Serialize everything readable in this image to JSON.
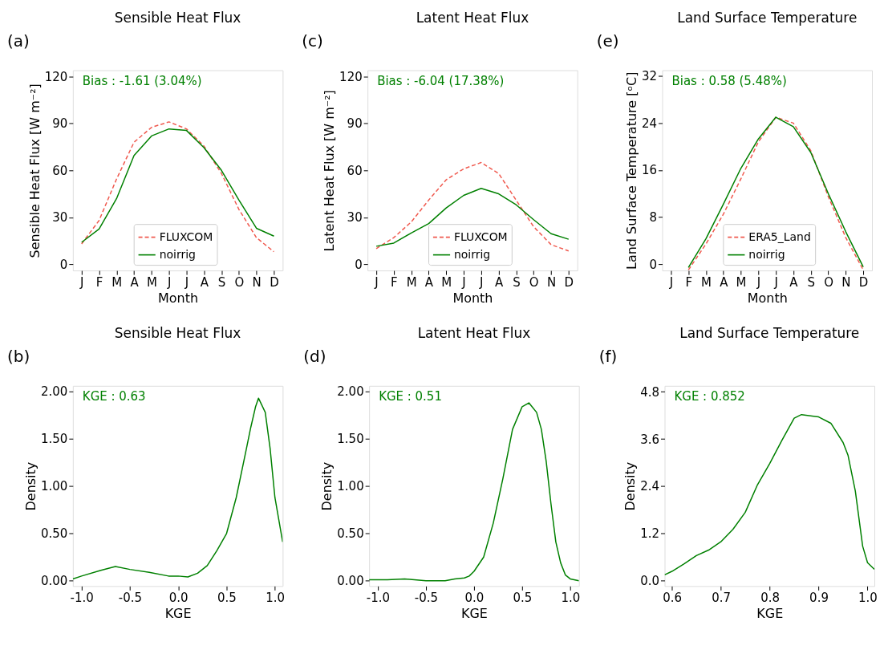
{
  "chart_data": [
    {
      "type": "line",
      "title": "Sensible Heat Flux",
      "xlabel": "Month",
      "ylabel": "Sensible Heat Flux [W m⁻²]",
      "annotations": [
        "(a)",
        "Bias : -1.61 (3.04%)"
      ],
      "categories": [
        "J",
        "F",
        "M",
        "A",
        "M",
        "J",
        "J",
        "A",
        "S",
        "O",
        "N",
        "D"
      ],
      "ylim": [
        -4,
        124
      ],
      "yticks": [
        0,
        30,
        60,
        90,
        120
      ],
      "grid": false,
      "legend": "bottom",
      "series": [
        {
          "name": "FLUXCOM",
          "color": "#f05a4f",
          "line_style": "dashed",
          "values": [
            13,
            28,
            54.5,
            78,
            87.5,
            91,
            86.5,
            75.5,
            58,
            35,
            17,
            8
          ]
        },
        {
          "name": "noirrig",
          "color": "#008000",
          "line_style": "solid",
          "values": [
            14,
            22.5,
            42,
            69.5,
            82,
            86.5,
            85.5,
            74.5,
            60,
            41,
            23,
            18
          ]
        }
      ]
    },
    {
      "type": "line",
      "title": "Latent Heat Flux",
      "xlabel": "Month",
      "ylabel": "Latent Heat Flux [W m⁻²]",
      "annotations": [
        "(c)",
        "Bias : -6.04 (17.38%)"
      ],
      "categories": [
        "J",
        "F",
        "M",
        "A",
        "M",
        "J",
        "J",
        "A",
        "S",
        "O",
        "N",
        "D"
      ],
      "ylim": [
        -4,
        124
      ],
      "yticks": [
        0,
        30,
        60,
        90,
        120
      ],
      "grid": false,
      "legend": "bottom",
      "series": [
        {
          "name": "FLUXCOM",
          "color": "#f05a4f",
          "line_style": "dashed",
          "values": [
            10,
            17,
            27,
            41,
            54,
            61,
            65,
            58,
            41,
            24,
            12.5,
            8.5
          ]
        },
        {
          "name": "noirrig",
          "color": "#008000",
          "line_style": "solid",
          "values": [
            11.5,
            13.5,
            20,
            26,
            36,
            44,
            48.5,
            45,
            38,
            28.5,
            19.5,
            16
          ]
        }
      ]
    },
    {
      "type": "line",
      "title": "Land Surface Temperature",
      "xlabel": "Month",
      "ylabel": "Land Surface Temperature [ᵒC]",
      "annotations": [
        "(e)",
        "Bias : 0.58 (5.48%)"
      ],
      "categories": [
        "J",
        "F",
        "M",
        "A",
        "M",
        "J",
        "J",
        "A",
        "S",
        "O",
        "N",
        "D"
      ],
      "ylim": [
        -1.1,
        33
      ],
      "yticks": [
        0,
        8,
        16,
        24,
        32
      ],
      "grid": false,
      "legend": "bottom",
      "series": [
        {
          "name": "ERA5_Land",
          "color": "#f05a4f",
          "line_style": "dashed",
          "values": [
            null,
            -1.0,
            3.4,
            8.5,
            14.5,
            20.8,
            25,
            24,
            19.3,
            11.5,
            4.5,
            -1.0
          ]
        },
        {
          "name": "noirrig",
          "color": "#008000",
          "line_style": "solid",
          "values": [
            null,
            -0.6,
            4.3,
            10.2,
            16.3,
            21.3,
            25,
            23.4,
            19,
            12,
            5.5,
            -0.5
          ]
        }
      ]
    },
    {
      "type": "line",
      "title": "Sensible Heat Flux",
      "xlabel": "KGE",
      "ylabel": "Density",
      "annotations": [
        "(b)",
        "KGE : 0.63"
      ],
      "xlim": [
        -1.09,
        1.08
      ],
      "xticks": [
        {
          "value": -1,
          "label": "-1.0"
        },
        -0.5,
        {
          "value": 0,
          "label": "0.0"
        },
        0.5,
        {
          "value": 1,
          "label": "1.0"
        }
      ],
      "ylim": [
        -0.056,
        2.06
      ],
      "yticks": [
        {
          "value": 0,
          "label": "0.00"
        },
        {
          "value": 0.5,
          "label": "0.50"
        },
        {
          "value": 1,
          "label": "1.00"
        },
        {
          "value": 1.5,
          "label": "1.50"
        },
        {
          "value": 2,
          "label": "2.00"
        }
      ],
      "grid": false,
      "series": [
        {
          "color": "#008000",
          "x": [
            -1.09,
            -1.0,
            -0.8,
            -0.65,
            -0.5,
            -0.3,
            -0.1,
            0.0,
            0.1,
            0.2,
            0.3,
            0.4,
            0.5,
            0.6,
            0.7,
            0.75,
            0.8,
            0.83,
            0.9,
            0.95,
            1.0,
            1.08
          ],
          "values": [
            0.02,
            0.05,
            0.11,
            0.15,
            0.12,
            0.09,
            0.05,
            0.05,
            0.04,
            0.08,
            0.16,
            0.32,
            0.5,
            0.88,
            1.37,
            1.62,
            1.84,
            1.93,
            1.78,
            1.4,
            0.88,
            0.41
          ]
        }
      ]
    },
    {
      "type": "line",
      "title": "Latent Heat Flux",
      "xlabel": "KGE",
      "ylabel": "Density",
      "annotations": [
        "(d)",
        "KGE : 0.51"
      ],
      "xlim": [
        -1.09,
        1.09
      ],
      "xticks": [
        {
          "value": -1,
          "label": "-1.0"
        },
        -0.5,
        {
          "value": 0,
          "label": "0.0"
        },
        0.5,
        {
          "value": 1,
          "label": "1.0"
        }
      ],
      "ylim": [
        -0.056,
        2.06
      ],
      "yticks": [
        {
          "value": 0,
          "label": "0.00"
        },
        {
          "value": 0.5,
          "label": "0.50"
        },
        {
          "value": 1,
          "label": "1.00"
        },
        {
          "value": 1.5,
          "label": "1.50"
        },
        {
          "value": 2,
          "label": "2.00"
        }
      ],
      "grid": false,
      "series": [
        {
          "color": "#008000",
          "x": [
            -1.09,
            -0.9,
            -0.72,
            -0.5,
            -0.3,
            -0.2,
            -0.1,
            -0.05,
            0.0,
            0.1,
            0.2,
            0.3,
            0.4,
            0.5,
            0.57,
            0.65,
            0.7,
            0.75,
            0.8,
            0.85,
            0.9,
            0.95,
            1.0,
            1.09
          ],
          "values": [
            0.01,
            0.01,
            0.02,
            0.0,
            0.0,
            0.02,
            0.03,
            0.05,
            0.1,
            0.25,
            0.61,
            1.08,
            1.6,
            1.84,
            1.88,
            1.78,
            1.6,
            1.26,
            0.81,
            0.41,
            0.19,
            0.06,
            0.02,
            0.0
          ]
        }
      ]
    },
    {
      "type": "line",
      "title": "Land Surface Temperature",
      "xlabel": "KGE",
      "ylabel": "Density",
      "annotations": [
        "(f)",
        "KGE : 0.852"
      ],
      "xlim": [
        0.585,
        1.014
      ],
      "xticks": [
        0.6,
        0.7,
        0.8,
        0.9,
        {
          "value": 1,
          "label": "1.0"
        }
      ],
      "ylim": [
        -0.134,
        4.95
      ],
      "yticks": [
        {
          "value": 0,
          "label": "0.0"
        },
        1.2,
        2.4,
        3.6,
        4.8
      ],
      "grid": false,
      "series": [
        {
          "color": "#008000",
          "x": [
            0.585,
            0.6,
            0.625,
            0.65,
            0.675,
            0.7,
            0.725,
            0.75,
            0.775,
            0.8,
            0.825,
            0.85,
            0.865,
            0.9,
            0.925,
            0.95,
            0.96,
            0.975,
            0.99,
            1.0,
            1.014
          ],
          "values": [
            0.15,
            0.24,
            0.43,
            0.64,
            0.78,
            0.99,
            1.31,
            1.74,
            2.44,
            2.98,
            3.57,
            4.13,
            4.22,
            4.16,
            4.0,
            3.51,
            3.19,
            2.28,
            0.88,
            0.46,
            0.29
          ]
        }
      ]
    }
  ]
}
